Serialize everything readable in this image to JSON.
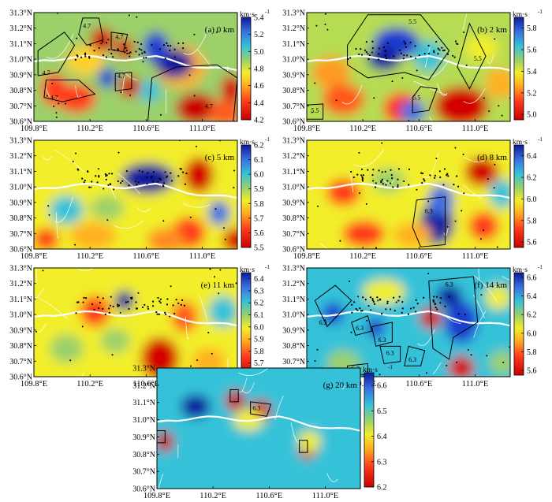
{
  "figure": {
    "unit_label": "km·s",
    "unit_exponent": "-1",
    "x_ticks": [
      "109.8°E",
      "110.2°E",
      "110.6°E",
      "111.0°E"
    ],
    "y_ticks": [
      "31.3°N",
      "31.2°N",
      "31.1°N",
      "31.0°N",
      "30.9°N",
      "30.8°N",
      "30.7°N",
      "30.6°N"
    ]
  },
  "chart_data": [
    {
      "type": "heatmap",
      "panel": "a",
      "title": "(a) 0 km",
      "x_ticks": [
        109.8,
        110.2,
        110.6,
        111.0
      ],
      "y_ticks": [
        31.3,
        31.2,
        31.1,
        31.0,
        30.9,
        30.8,
        30.7,
        30.6
      ],
      "xlim": [
        109.8,
        111.25
      ],
      "ylim": [
        30.6,
        31.3
      ],
      "colorbar": {
        "ticks": [
          5.4,
          5.2,
          5.0,
          4.8,
          4.6,
          4.4,
          4.2
        ],
        "range": [
          4.2,
          5.4
        ]
      },
      "contour_labels": [
        "4.7",
        "4.7",
        "4.7",
        "4.7",
        "4.7",
        "4.7"
      ],
      "colors": {
        "low": "#d40000",
        "high": "#0a1a9e",
        "mid": "#9bd06a"
      }
    },
    {
      "type": "heatmap",
      "panel": "b",
      "title": "(b) 2 km",
      "x_ticks": [
        109.8,
        110.2,
        110.6,
        111.0
      ],
      "y_ticks": [
        31.3,
        31.2,
        31.1,
        31.0,
        30.9,
        30.8,
        30.7,
        30.6
      ],
      "xlim": [
        109.8,
        111.25
      ],
      "ylim": [
        30.6,
        31.3
      ],
      "colorbar": {
        "ticks": [
          5.8,
          5.6,
          5.4,
          5.2,
          5.0
        ],
        "range": [
          4.95,
          5.9
        ]
      },
      "contour_labels": [
        "5.5",
        "5.5",
        "5.5",
        "5.5",
        "5.5",
        "5.5"
      ]
    },
    {
      "type": "heatmap",
      "panel": "c",
      "title": "(c) 5 km",
      "x_ticks": [
        109.8,
        110.2,
        110.6,
        111.0
      ],
      "y_ticks": [
        31.3,
        31.2,
        31.1,
        31.0,
        30.9,
        30.8,
        30.7,
        30.6
      ],
      "xlim": [
        109.8,
        111.25
      ],
      "ylim": [
        30.6,
        31.3
      ],
      "colorbar": {
        "ticks": [
          6.2,
          6.1,
          6.0,
          5.9,
          5.8,
          5.7,
          5.6,
          5.5
        ],
        "range": [
          5.5,
          6.2
        ]
      }
    },
    {
      "type": "heatmap",
      "panel": "d",
      "title": "(d) 8 km",
      "x_ticks": [
        109.8,
        110.2,
        110.6,
        111.0
      ],
      "y_ticks": [
        31.3,
        31.2,
        31.1,
        31.0,
        30.9,
        30.8,
        30.7,
        30.6
      ],
      "xlim": [
        109.8,
        111.25
      ],
      "ylim": [
        30.6,
        31.3
      ],
      "colorbar": {
        "ticks": [
          6.4,
          6.2,
          6.0,
          5.8,
          5.6
        ],
        "range": [
          5.55,
          6.5
        ]
      },
      "contour_labels": [
        "6.3"
      ]
    },
    {
      "type": "heatmap",
      "panel": "e",
      "title": "(e) 11 km",
      "x_ticks": [
        109.8,
        110.2,
        110.6,
        111.0
      ],
      "y_ticks": [
        31.3,
        31.2,
        31.1,
        31.0,
        30.9,
        30.8,
        30.7,
        30.6
      ],
      "xlim": [
        109.8,
        111.25
      ],
      "ylim": [
        30.6,
        31.3
      ],
      "colorbar": {
        "ticks": [
          6.4,
          6.3,
          6.2,
          6.1,
          6.0,
          5.9,
          5.8,
          5.7,
          5.6
        ],
        "range": [
          5.6,
          6.45
        ]
      }
    },
    {
      "type": "heatmap",
      "panel": "f",
      "title": "(f) 14 km",
      "x_ticks": [
        109.8,
        110.2,
        110.6,
        111.0
      ],
      "y_ticks": [
        31.3,
        31.2,
        31.1,
        31.0,
        30.9,
        30.8,
        30.7,
        30.6
      ],
      "xlim": [
        109.8,
        111.25
      ],
      "ylim": [
        30.6,
        31.3
      ],
      "colorbar": {
        "ticks": [
          6.6,
          6.4,
          6.2,
          6.0,
          5.8,
          5.6
        ],
        "range": [
          5.55,
          6.65
        ]
      },
      "contour_labels": [
        "6.3",
        "6.3",
        "6.3",
        "6.3",
        "6.3",
        "6.3",
        "6.3",
        "6.3"
      ]
    },
    {
      "type": "heatmap",
      "panel": "g",
      "title": "(g) 20 km",
      "x_ticks": [
        109.8,
        110.2,
        110.6,
        111.0
      ],
      "y_ticks": [
        31.3,
        31.2,
        31.1,
        31.0,
        30.9,
        30.8,
        30.7,
        30.6
      ],
      "xlim": [
        109.8,
        111.25
      ],
      "ylim": [
        30.6,
        31.3
      ],
      "colorbar": {
        "ticks": [
          6.6,
          6.5,
          6.4,
          6.3,
          6.2
        ],
        "range": [
          6.2,
          6.65
        ]
      },
      "contour_labels": [
        "6.3"
      ]
    }
  ]
}
